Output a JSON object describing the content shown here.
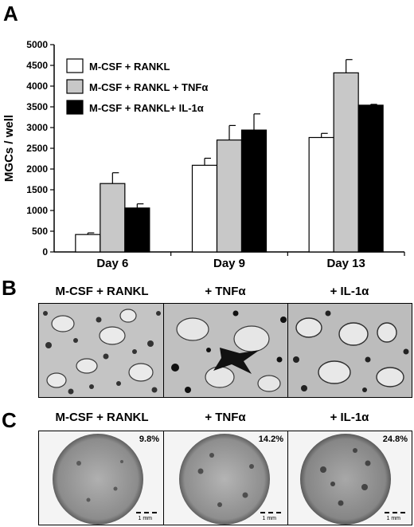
{
  "panels": {
    "a": "A",
    "b": "B",
    "c": "C"
  },
  "chart_data": {
    "type": "bar",
    "ylabel": "MGCs / well",
    "ylim": [
      0,
      5000
    ],
    "yticks": [
      0,
      500,
      1000,
      1500,
      2000,
      2500,
      3000,
      3500,
      4000,
      4500,
      5000
    ],
    "categories": [
      "Day 6",
      "Day 9",
      "Day 13"
    ],
    "legend_position": "top-left",
    "grid": false,
    "series": [
      {
        "name": "M-CSF + RANKL",
        "color": "#ffffff",
        "values": [
          420,
          2090,
          2760
        ],
        "errors": [
          40,
          170,
          100
        ]
      },
      {
        "name": "M-CSF + RANKL + TNFα",
        "color": "#c8c8c8",
        "values": [
          1650,
          2700,
          4320
        ],
        "errors": [
          260,
          350,
          320
        ]
      },
      {
        "name": "M-CSF + RANKL+ IL-1α",
        "color": "#000000",
        "values": [
          1060,
          2940,
          3540
        ],
        "errors": [
          100,
          390,
          20
        ]
      }
    ]
  },
  "panel_b": {
    "labels": [
      "M-CSF + RANKL",
      "+ TNFα",
      "+ IL-1α"
    ]
  },
  "panel_c": {
    "labels": [
      "M-CSF + RANKL",
      "+ TNFα",
      "+ IL-1α"
    ],
    "percents": [
      "9.8%",
      "14.2%",
      "24.8%"
    ],
    "scale_label": "1 mm"
  }
}
